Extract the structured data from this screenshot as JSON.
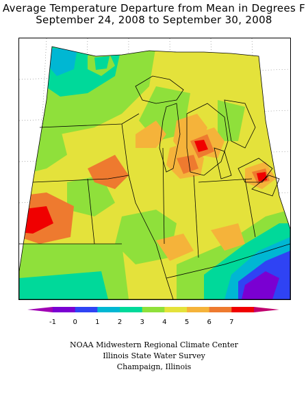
{
  "title": {
    "line1": "Average Temperature Departure from Mean in Degrees F",
    "line2": "September 24, 2008 to September 30, 2008"
  },
  "legend": {
    "tick_labels": [
      "-1",
      "0",
      "1",
      "2",
      "3",
      "4",
      "5",
      "6",
      "7"
    ],
    "colors": [
      "#7a00d2",
      "#2f43f4",
      "#00b7d3",
      "#00d99a",
      "#8fe03b",
      "#e4e23b",
      "#f5b33a",
      "#ee7a2f",
      "#f00000"
    ],
    "under_color": "#a000b4",
    "over_color": "#c0006e"
  },
  "credits": {
    "line1": "NOAA Midwestern Regional Climate Center",
    "line2": "Illinois State Water Survey",
    "line3": "Champaign, Illinois"
  }
}
